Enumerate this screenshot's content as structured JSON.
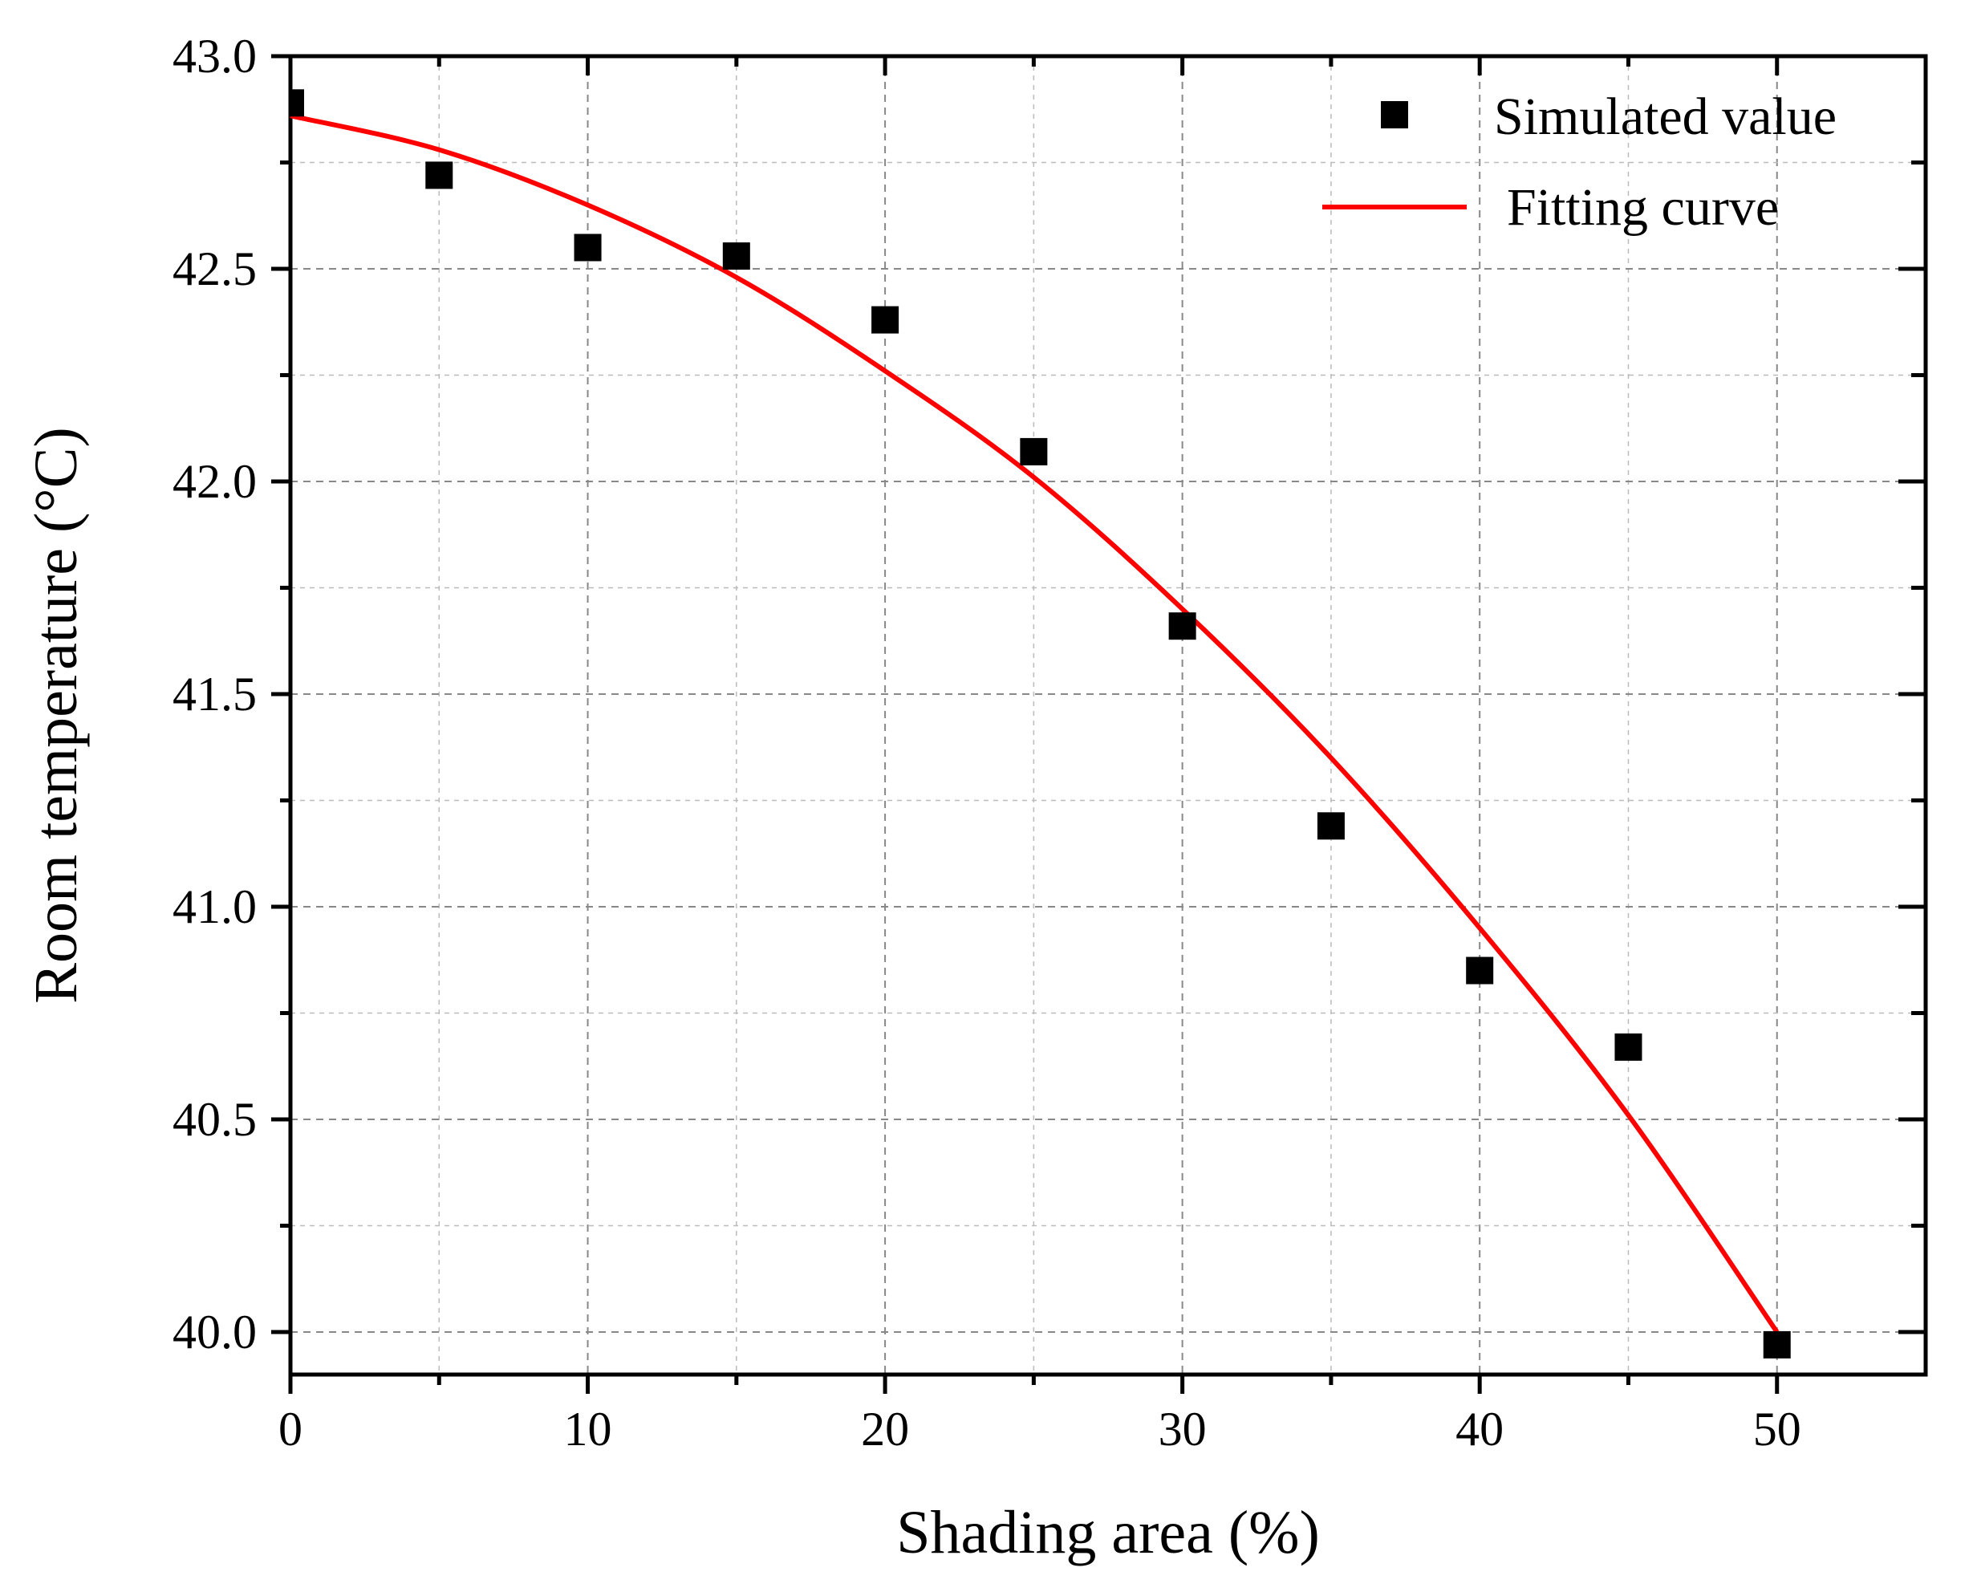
{
  "chart_data": {
    "type": "scatter",
    "title": "",
    "xlabel": "Shading area (%)",
    "ylabel": "Room temperature (°C)",
    "xlim": [
      0,
      55
    ],
    "ylim": [
      39.9,
      43.0
    ],
    "xticks": [
      0,
      10,
      20,
      30,
      40,
      50
    ],
    "xtick_labels": [
      "0",
      "10",
      "20",
      "30",
      "40",
      "50"
    ],
    "yticks": [
      40.0,
      40.5,
      41.0,
      41.5,
      42.0,
      42.5,
      43.0
    ],
    "ytick_labels": [
      "40.0",
      "40.5",
      "41.0",
      "41.5",
      "42.0",
      "42.5",
      "43.0"
    ],
    "grid": true,
    "legend_position": "top-right",
    "series": [
      {
        "name": "Simulated value",
        "kind": "scatter",
        "marker": "square",
        "color": "#000000",
        "x": [
          0,
          5,
          10,
          15,
          20,
          25,
          30,
          35,
          40,
          45,
          50
        ],
        "y": [
          42.89,
          42.72,
          42.55,
          42.53,
          42.38,
          42.07,
          41.66,
          41.19,
          40.85,
          40.67,
          39.97
        ]
      },
      {
        "name": "Fitting curve",
        "kind": "line",
        "color": "#ff0000",
        "x": [
          0,
          5,
          10,
          15,
          20,
          25,
          30,
          35,
          40,
          45,
          50
        ],
        "y": [
          42.86,
          42.78,
          42.65,
          42.48,
          42.26,
          42.01,
          41.7,
          41.35,
          40.95,
          40.51,
          40.0
        ]
      }
    ]
  }
}
